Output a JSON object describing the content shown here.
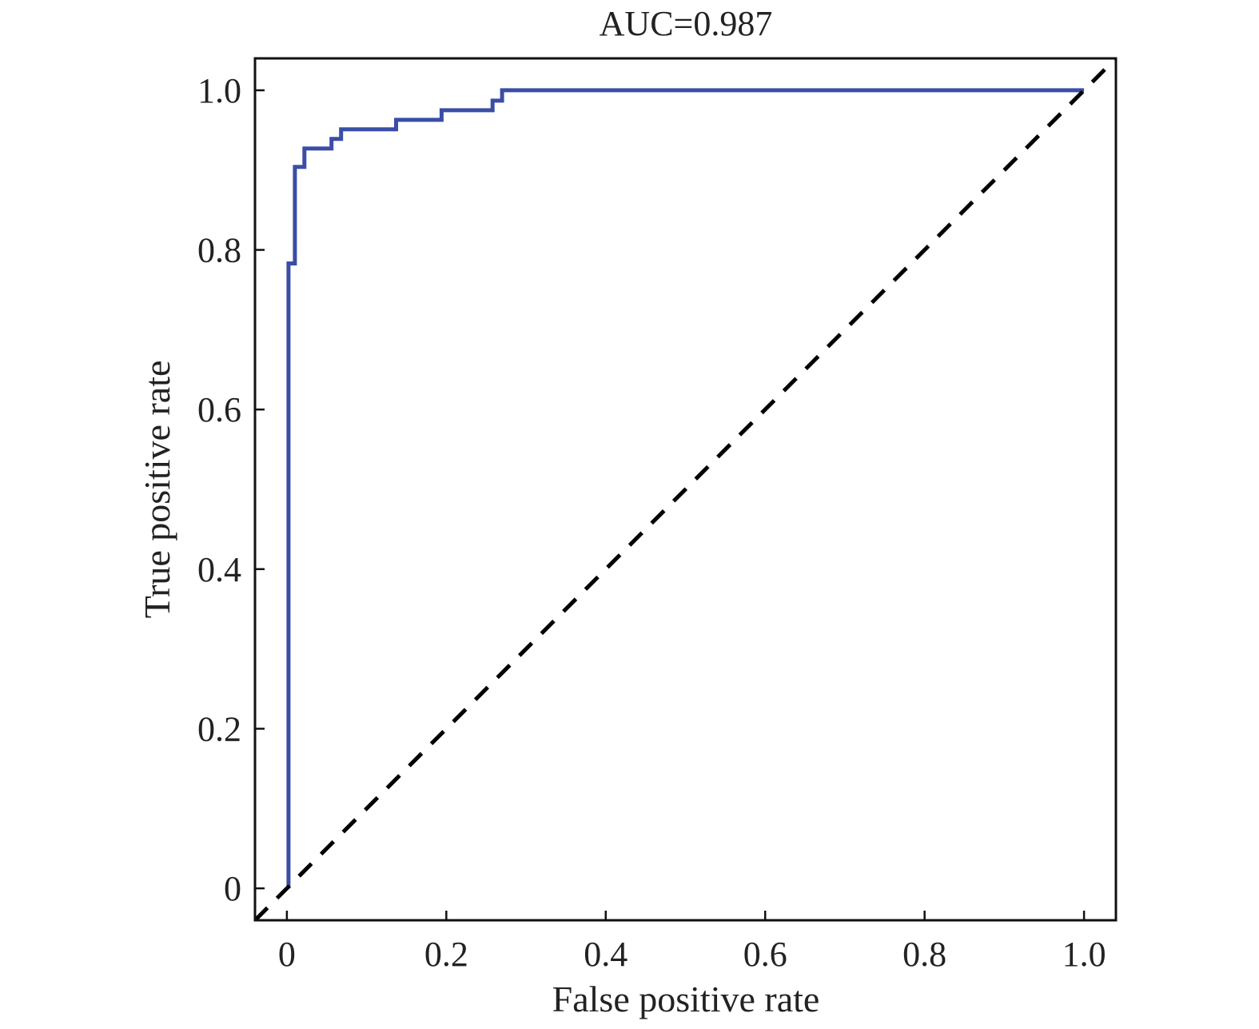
{
  "chart_data": {
    "type": "line",
    "title": "AUC=0.987",
    "xlabel": "False positive rate",
    "ylabel": "True positive rate",
    "xlim": [
      -0.04,
      1.04
    ],
    "ylim": [
      -0.04,
      1.04
    ],
    "x_ticks": [
      0,
      0.2,
      0.4,
      0.6,
      0.8,
      1.0
    ],
    "x_tick_labels": [
      "0",
      "0.2",
      "0.4",
      "0.6",
      "0.8",
      "1.0"
    ],
    "y_ticks": [
      0,
      0.2,
      0.4,
      0.6,
      0.8,
      1.0
    ],
    "y_tick_labels": [
      "0",
      "0.2",
      "0.4",
      "0.6",
      "0.8",
      "1.0"
    ],
    "grid": false,
    "series": [
      {
        "style": "solid",
        "color": "#3a4ea6",
        "x": [
          0.002,
          0.002,
          0.01,
          0.01,
          0.022,
          0.022,
          0.056,
          0.056,
          0.068,
          0.068,
          0.137,
          0.137,
          0.194,
          0.194,
          0.258,
          0.258,
          0.27,
          0.27,
          1.0
        ],
        "y": [
          0.0,
          0.783,
          0.783,
          0.904,
          0.904,
          0.927,
          0.927,
          0.939,
          0.939,
          0.951,
          0.951,
          0.963,
          0.963,
          0.975,
          0.975,
          0.987,
          0.987,
          1.0,
          1.0
        ]
      },
      {
        "style": "dashed",
        "color": "#000000",
        "x": [
          -0.04,
          1.04
        ],
        "y": [
          -0.04,
          1.04
        ]
      }
    ]
  }
}
